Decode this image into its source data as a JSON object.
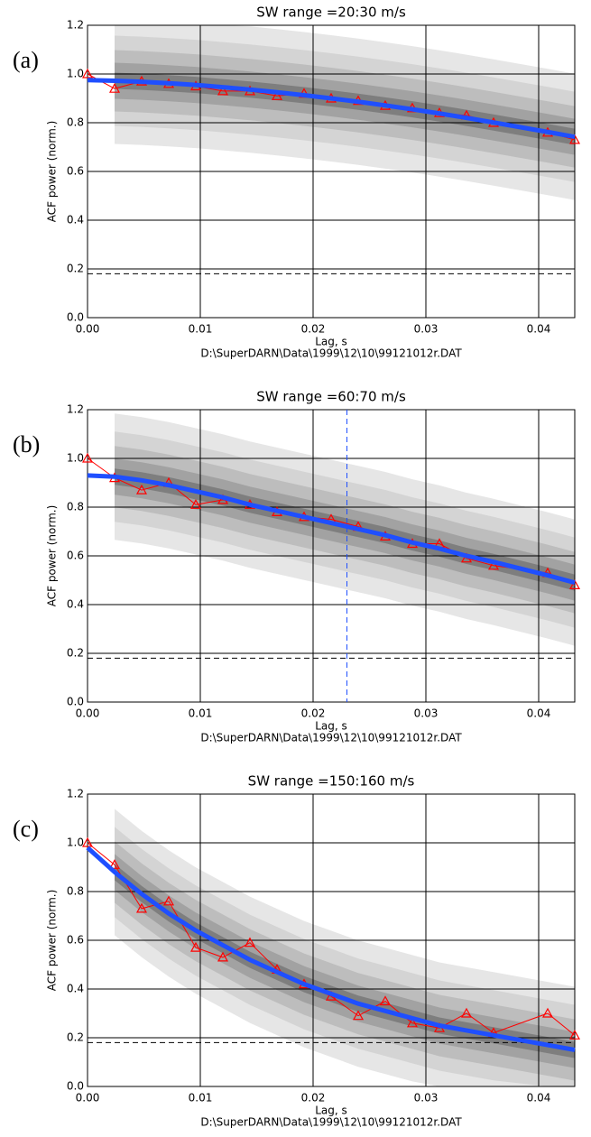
{
  "chart_data": [
    {
      "type": "line",
      "label": "(a)",
      "title": "SW range =20:30 m/s",
      "x_label": "Lag, s",
      "y_label": "ACF power (norm.)",
      "subtitle": "D:\\SuperDARN\\Data\\1999\\12\\10\\99121012r.DAT",
      "x": [
        0,
        0.0024,
        0.0048,
        0.0072,
        0.0096,
        0.012,
        0.0144,
        0.0168,
        0.0192,
        0.0216,
        0.024,
        0.0264,
        0.0288,
        0.0312,
        0.0336,
        0.036,
        0.0408,
        0.0432
      ],
      "series": [
        {
          "color": "#ff0000",
          "marker": "triangle",
          "values": [
            1.0,
            0.94,
            0.97,
            0.96,
            0.95,
            0.93,
            0.93,
            0.91,
            0.92,
            0.9,
            0.89,
            0.87,
            0.86,
            0.84,
            0.83,
            0.8,
            0.76,
            0.73
          ]
        },
        {
          "color": "#1f4fff",
          "marker": "none",
          "values": [
            0.975,
            0.972,
            0.968,
            0.962,
            0.955,
            0.946,
            0.936,
            0.925,
            0.913,
            0.9,
            0.886,
            0.871,
            0.855,
            0.838,
            0.82,
            0.801,
            0.762,
            0.742
          ]
        }
      ],
      "hlines": [
        0.18
      ],
      "vlines": [],
      "xlim": [
        0,
        0.0432
      ],
      "ylim": [
        0,
        1.2
      ],
      "xticks": [
        {
          "value": 0,
          "label": "0.00"
        },
        {
          "value": 0.01,
          "label": "0.01"
        },
        {
          "value": 0.02,
          "label": "0.02"
        },
        {
          "value": 0.03,
          "label": "0.03"
        },
        {
          "value": 0.04,
          "label": "0.04"
        }
      ],
      "yticks": [
        {
          "value": 0,
          "label": "0.0"
        },
        0.2,
        0.4,
        0.6,
        0.8,
        {
          "value": 1,
          "label": "1.0"
        },
        1.2
      ],
      "grid": true
    },
    {
      "type": "line",
      "label": "(b)",
      "title": "SW range =60:70 m/s",
      "x_label": "Lag, s",
      "y_label": "ACF power (norm.)",
      "subtitle": "D:\\SuperDARN\\Data\\1999\\12\\10\\99121012r.DAT",
      "x": [
        0,
        0.0024,
        0.0048,
        0.0072,
        0.0096,
        0.012,
        0.0144,
        0.0168,
        0.0192,
        0.0216,
        0.024,
        0.0264,
        0.0288,
        0.0312,
        0.0336,
        0.036,
        0.0408,
        0.0432
      ],
      "series": [
        {
          "color": "#ff0000",
          "marker": "triangle",
          "values": [
            1.0,
            0.92,
            0.87,
            0.9,
            0.81,
            0.83,
            0.81,
            0.78,
            0.76,
            0.75,
            0.72,
            0.68,
            0.65,
            0.65,
            0.59,
            0.56,
            0.53,
            0.48
          ]
        },
        {
          "color": "#1f4fff",
          "marker": "none",
          "values": [
            0.93,
            0.925,
            0.91,
            0.89,
            0.865,
            0.84,
            0.81,
            0.785,
            0.76,
            0.735,
            0.71,
            0.685,
            0.655,
            0.63,
            0.6,
            0.575,
            0.52,
            0.49
          ]
        }
      ],
      "hlines": [
        0.18
      ],
      "vlines": [
        0.023
      ],
      "xlim": [
        0,
        0.0432
      ],
      "ylim": [
        0,
        1.2
      ],
      "xticks": [
        {
          "value": 0,
          "label": "0.00"
        },
        {
          "value": 0.01,
          "label": "0.01"
        },
        {
          "value": 0.02,
          "label": "0.02"
        },
        {
          "value": 0.03,
          "label": "0.03"
        },
        {
          "value": 0.04,
          "label": "0.04"
        }
      ],
      "yticks": [
        {
          "value": 0,
          "label": "0.0"
        },
        0.2,
        0.4,
        0.6,
        0.8,
        {
          "value": 1,
          "label": "1.0"
        },
        1.2
      ],
      "grid": true
    },
    {
      "type": "line",
      "label": "(c)",
      "title": "SW range =150:160 m/s",
      "x_label": "Lag, s",
      "y_label": "ACF power (norm.)",
      "subtitle": "D:\\SuperDARN\\Data\\1999\\12\\10\\99121012r.DAT",
      "x": [
        0,
        0.0024,
        0.0048,
        0.0072,
        0.0096,
        0.012,
        0.0144,
        0.0168,
        0.0192,
        0.0216,
        0.024,
        0.0264,
        0.0288,
        0.0312,
        0.0336,
        0.036,
        0.0408,
        0.0432
      ],
      "series": [
        {
          "color": "#ff0000",
          "marker": "triangle",
          "values": [
            1.0,
            0.91,
            0.73,
            0.76,
            0.57,
            0.53,
            0.59,
            0.48,
            0.42,
            0.37,
            0.29,
            0.35,
            0.26,
            0.24,
            0.3,
            0.22,
            0.3,
            0.21
          ]
        },
        {
          "color": "#1f4fff",
          "marker": "none",
          "values": [
            0.98,
            0.88,
            0.79,
            0.71,
            0.64,
            0.58,
            0.52,
            0.47,
            0.42,
            0.38,
            0.34,
            0.31,
            0.28,
            0.25,
            0.23,
            0.21,
            0.17,
            0.15
          ]
        }
      ],
      "hlines": [
        0.18
      ],
      "vlines": [],
      "xlim": [
        0,
        0.0432
      ],
      "ylim": [
        0,
        1.2
      ],
      "xticks": [
        {
          "value": 0,
          "label": "0.00"
        },
        {
          "value": 0.01,
          "label": "0.01"
        },
        {
          "value": 0.02,
          "label": "0.02"
        },
        {
          "value": 0.03,
          "label": "0.03"
        },
        {
          "value": 0.04,
          "label": "0.04"
        }
      ],
      "yticks": [
        {
          "value": 0,
          "label": "0.0"
        },
        0.2,
        0.4,
        0.6,
        0.8,
        {
          "value": 1,
          "label": "1.0"
        },
        1.2
      ],
      "grid": true
    }
  ]
}
